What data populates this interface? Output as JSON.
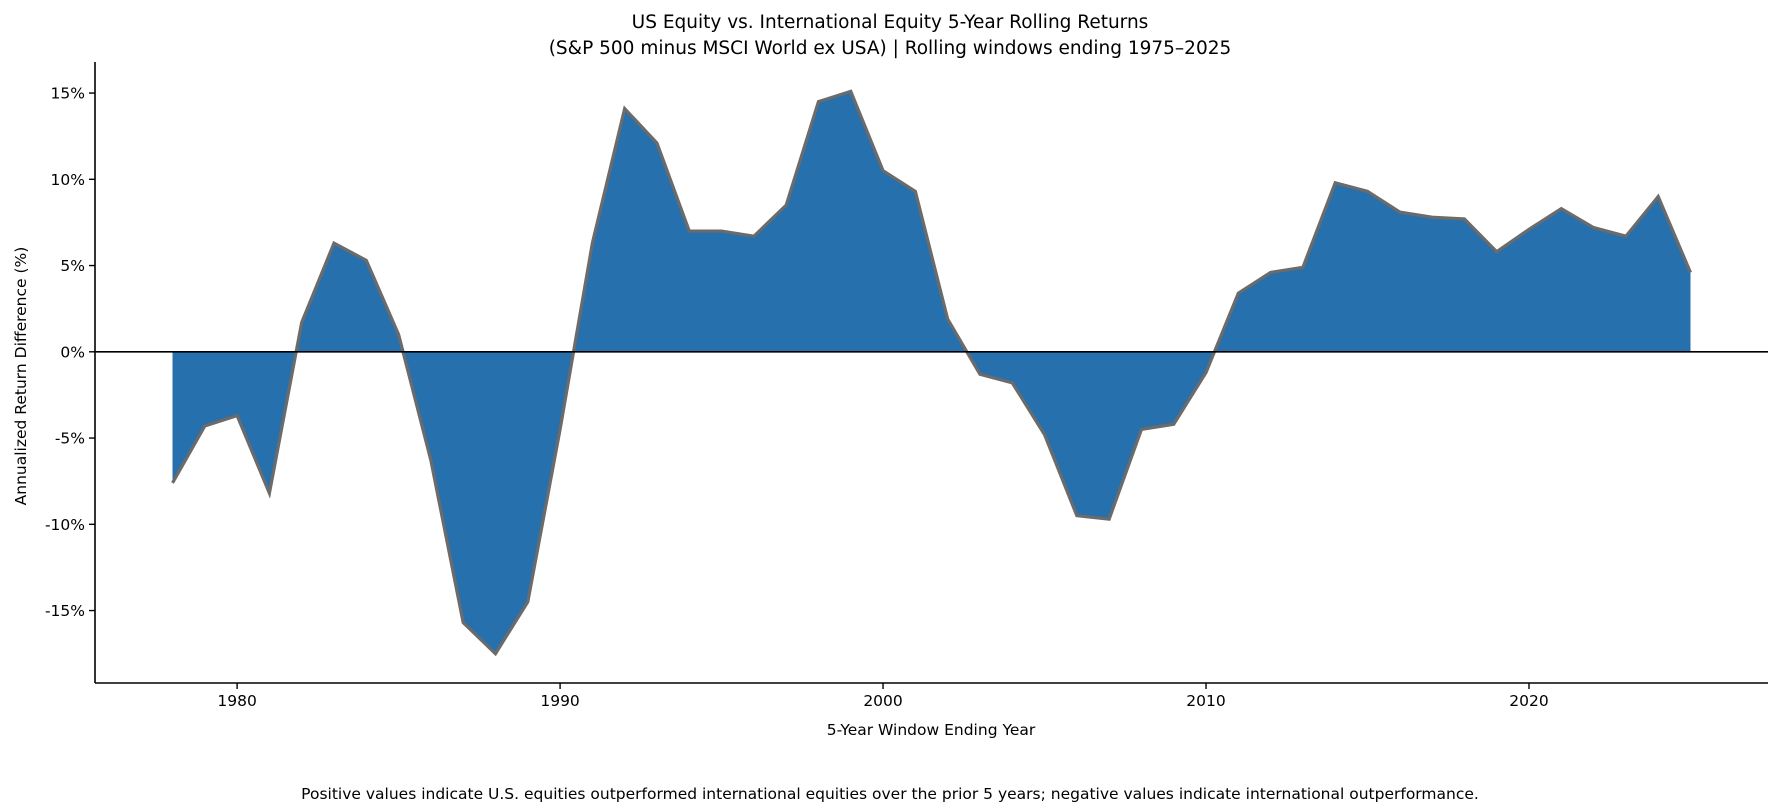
{
  "chart_data": {
    "type": "area",
    "title": "US Equity vs. International Equity 5-Year Rolling Returns",
    "subtitle": "(S&P 500 minus MSCI World ex USA) | Rolling windows ending 1975–2025",
    "xlabel": "5-Year Window Ending Year",
    "ylabel": "Annualized Return Difference (%)",
    "footnote": "Positive values indicate U.S. equities outperformed international equities over the prior 5 years; negative values indicate international outperformance.",
    "xlim": [
      1975.6,
      2027.4
    ],
    "ylim": [
      -19.2,
      16.8
    ],
    "grid": false,
    "legend": "none",
    "baseline": 0,
    "xticks": [
      1980,
      1990,
      2000,
      2010,
      2020
    ],
    "xtick_labels": [
      "1980",
      "1990",
      "2000",
      "2010",
      "2020"
    ],
    "yticks": [
      -15,
      -10,
      -5,
      0,
      5,
      10,
      15
    ],
    "ytick_labels": [
      "-15%",
      "-10%",
      "-5%",
      "0%",
      "5%",
      "10%",
      "15%"
    ],
    "series": [
      {
        "name": "S&P 500 minus MSCI World ex USA",
        "fill_color": "#2570ad",
        "line_color": "#6b6b6b",
        "x": [
          1978,
          1979,
          1980,
          1981,
          1982,
          1983,
          1984,
          1985,
          1986,
          1987,
          1988,
          1989,
          1990,
          1991,
          1992,
          1993,
          1994,
          1995,
          1996,
          1997,
          1998,
          1999,
          2000,
          2001,
          2002,
          2003,
          2004,
          2005,
          2006,
          2007,
          2008,
          2009,
          2010,
          2011,
          2012,
          2013,
          2014,
          2015,
          2016,
          2017,
          2018,
          2019,
          2020,
          2021,
          2022,
          2023,
          2024,
          2025
        ],
        "values": [
          -7.6,
          -4.3,
          -3.7,
          -8.2,
          1.7,
          6.3,
          5.3,
          1.0,
          -6.3,
          -15.7,
          -17.5,
          -14.5,
          -4.5,
          6.3,
          14.1,
          12.1,
          7.0,
          7.0,
          6.7,
          8.5,
          14.5,
          15.1,
          10.5,
          9.3,
          1.9,
          -1.3,
          -1.8,
          -4.8,
          -9.5,
          -9.7,
          -4.5,
          -4.2,
          -1.2,
          3.4,
          4.6,
          4.9,
          9.8,
          9.3,
          8.1,
          7.8,
          7.7,
          5.8,
          7.1,
          8.3,
          7.2,
          6.7,
          9.0,
          4.6
        ]
      }
    ]
  }
}
